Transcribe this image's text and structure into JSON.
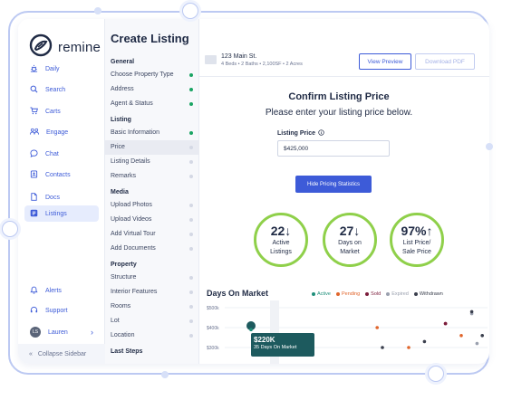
{
  "brand": {
    "name": "remine"
  },
  "nav": {
    "items": [
      {
        "key": "daily",
        "label": "Daily"
      },
      {
        "key": "search",
        "label": "Search"
      },
      {
        "key": "carts",
        "label": "Carts"
      },
      {
        "key": "engage",
        "label": "Engage"
      },
      {
        "key": "chat",
        "label": "Chat"
      },
      {
        "key": "contacts",
        "label": "Contacts"
      },
      {
        "key": "docs",
        "label": "Docs"
      },
      {
        "key": "listings",
        "label": "Listings",
        "active": true
      }
    ],
    "bottom": [
      {
        "key": "alerts",
        "label": "Alerts"
      },
      {
        "key": "support",
        "label": "Support"
      }
    ],
    "user": {
      "initials": "LS",
      "name": "Lauren"
    },
    "collapse_label": "Collapse Sidebar"
  },
  "page": {
    "title": "Create Listing"
  },
  "sections": [
    {
      "title": "General",
      "items": [
        {
          "label": "Choose Property Type",
          "status": "done"
        },
        {
          "label": "Address",
          "status": "done"
        },
        {
          "label": "Agent & Status",
          "status": "done"
        }
      ]
    },
    {
      "title": "Listing",
      "items": [
        {
          "label": "Basic Information",
          "status": "done"
        },
        {
          "label": "Price",
          "status": "pending",
          "active": true
        },
        {
          "label": "Listing Details",
          "status": "pending"
        },
        {
          "label": "Remarks",
          "status": "pending"
        }
      ]
    },
    {
      "title": "Media",
      "items": [
        {
          "label": "Upload Photos",
          "status": "pending"
        },
        {
          "label": "Upload Videos",
          "status": "pending"
        },
        {
          "label": "Add Virtual Tour",
          "status": "pending"
        },
        {
          "label": "Add Documents",
          "status": "pending"
        }
      ]
    },
    {
      "title": "Property",
      "items": [
        {
          "label": "Structure",
          "status": "pending"
        },
        {
          "label": "Interior Features",
          "status": "pending"
        },
        {
          "label": "Rooms",
          "status": "pending"
        },
        {
          "label": "Lot",
          "status": "pending"
        },
        {
          "label": "Location",
          "status": "pending"
        }
      ]
    },
    {
      "title": "Last Steps",
      "items": []
    }
  ],
  "property": {
    "address": "123 Main St.",
    "details": "4 Beds • 2 Baths • 2,100SF • 2 Acres",
    "preview_label": "View Preview",
    "download_label": "Download PDF"
  },
  "confirm": {
    "title": "Confirm Listing Price",
    "subtitle": "Please enter your listing price below.",
    "field_label": "Listing Price",
    "field_value": "$425,000",
    "hide_button": "Hide Pricing Statistics"
  },
  "stats": [
    {
      "value": "22",
      "arrow": "↓",
      "line1": "Active",
      "line2": "Listings"
    },
    {
      "value": "27",
      "arrow": "↓",
      "line1": "Days on",
      "line2": "Market"
    },
    {
      "value": "97%",
      "arrow": "↑",
      "line1": "List Price/",
      "line2": "Sale Price"
    }
  ],
  "chart_section": {
    "title": "Days On Market",
    "legend": [
      {
        "label": "Active",
        "color": "#1f8f7a"
      },
      {
        "label": "Pending",
        "color": "#e0652b"
      },
      {
        "label": "Sold",
        "color": "#7b1c3a"
      },
      {
        "label": "Expired",
        "color": "#9aa0ae"
      },
      {
        "label": "Withdrawn",
        "color": "#3a3f4d"
      }
    ],
    "tooltip": {
      "price": "$220K",
      "detail": "35 Days On Market"
    }
  },
  "chart_data": {
    "type": "scatter",
    "title": "Days On Market",
    "xlabel": "",
    "ylabel": "",
    "yticks": [
      "$500k",
      "$400k",
      "$300k"
    ],
    "series": [
      {
        "name": "Active",
        "color": "#1f8f7a",
        "points": [
          [
            10,
            390
          ],
          [
            30,
            300
          ]
        ]
      },
      {
        "name": "Pending",
        "color": "#e0652b",
        "points": [
          [
            58,
            400
          ],
          [
            70,
            300
          ],
          [
            90,
            360
          ]
        ]
      },
      {
        "name": "Sold",
        "color": "#7b1c3a",
        "points": [
          [
            32,
            360
          ],
          [
            84,
            420
          ],
          [
            84,
            420
          ]
        ]
      },
      {
        "name": "Expired",
        "color": "#9aa0ae",
        "points": [
          [
            94,
            470
          ],
          [
            96,
            320
          ]
        ]
      },
      {
        "name": "Withdrawn",
        "color": "#3a3f4d",
        "points": [
          [
            60,
            300
          ],
          [
            76,
            330
          ],
          [
            98,
            360
          ],
          [
            94,
            480
          ]
        ]
      }
    ]
  }
}
